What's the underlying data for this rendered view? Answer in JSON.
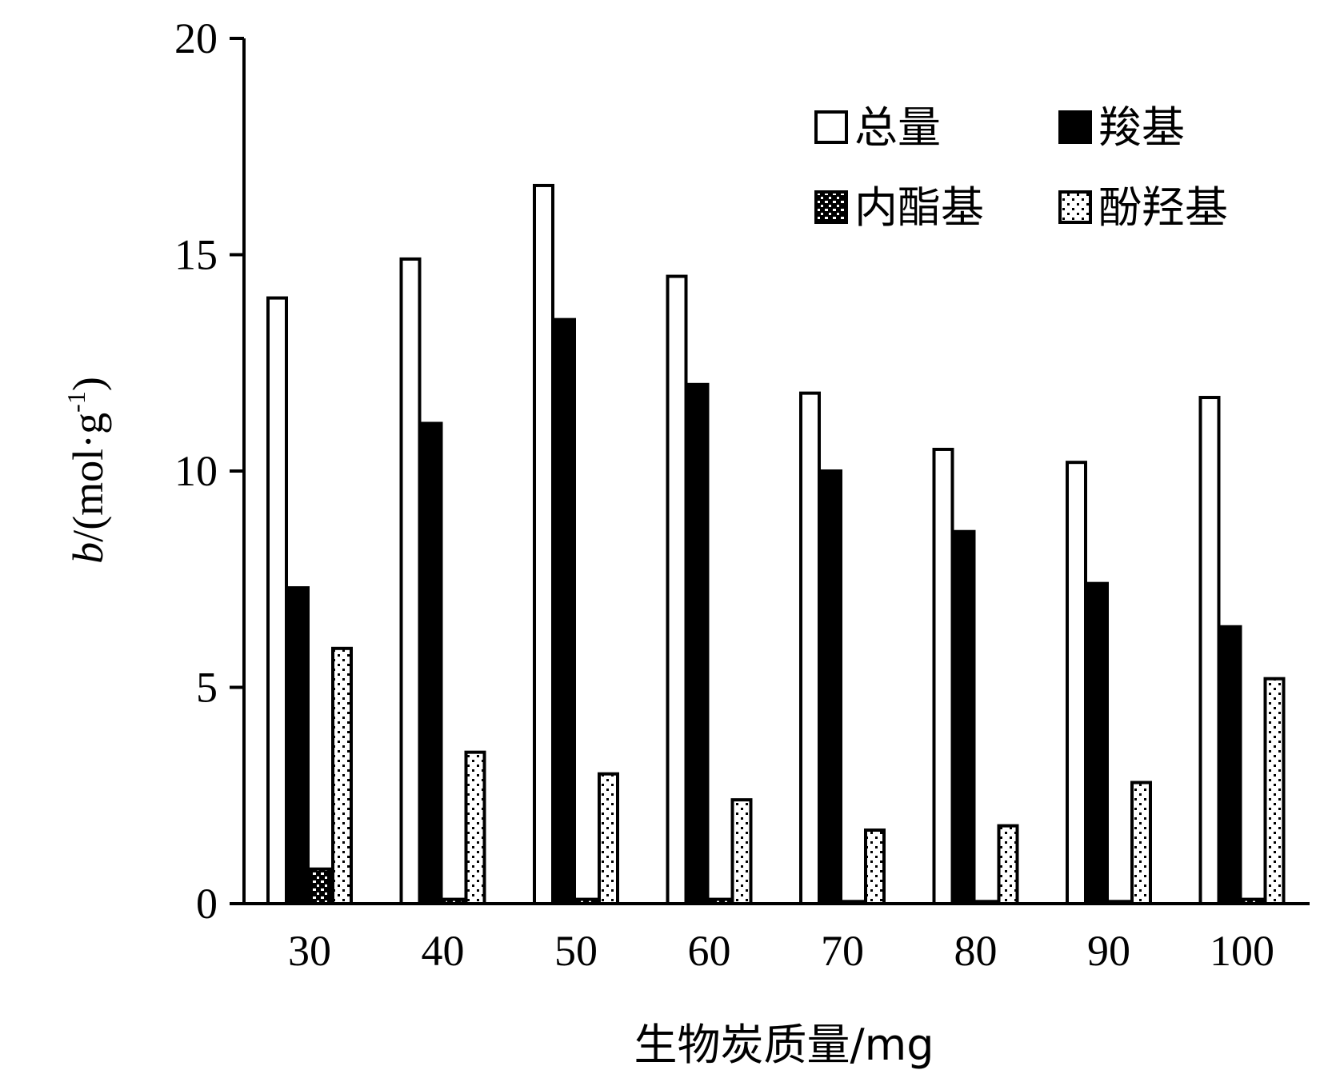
{
  "chart_data": {
    "type": "bar",
    "categories": [
      "30",
      "40",
      "50",
      "60",
      "70",
      "80",
      "90",
      "100"
    ],
    "series": [
      {
        "name": "总量",
        "values": [
          14.0,
          14.9,
          16.6,
          14.5,
          11.8,
          10.5,
          10.2,
          11.7
        ],
        "style": "white"
      },
      {
        "name": "羧基",
        "values": [
          7.3,
          11.1,
          13.5,
          12.0,
          10.0,
          8.6,
          7.4,
          6.4
        ],
        "style": "black"
      },
      {
        "name": "内酯基",
        "values": [
          0.8,
          0.1,
          0.1,
          0.1,
          0.05,
          0.05,
          0.05,
          0.1
        ],
        "style": "checker"
      },
      {
        "name": "酚羟基",
        "values": [
          5.9,
          3.5,
          3.0,
          2.4,
          1.7,
          1.8,
          2.8,
          5.2
        ],
        "style": "dotted"
      }
    ],
    "xlabel": "生物炭质量/mg",
    "ylabel": {
      "var": "b",
      "unit": "/(mol·g",
      "sup": "-1",
      "close": ")"
    },
    "yticks": [
      "0",
      "5",
      "10",
      "15",
      "20"
    ],
    "ylim": [
      0,
      20
    ],
    "legend_position": "top-right",
    "grid": false
  }
}
